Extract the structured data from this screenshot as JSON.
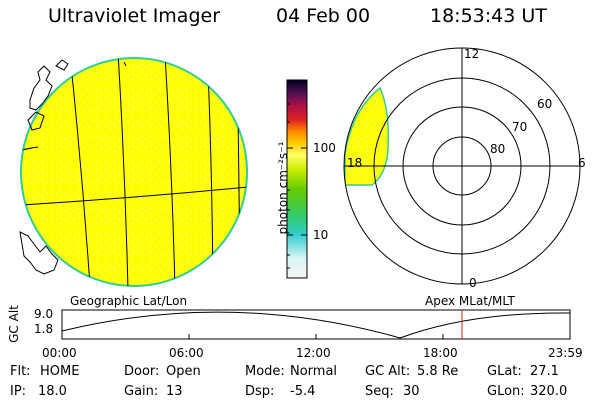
{
  "header": {
    "instrument": "Ultraviolet Imager",
    "date": "04 Feb 00",
    "time": "18:53:43 UT"
  },
  "colorbar": {
    "label": "photon cm⁻²s⁻¹",
    "ticks": [
      "100",
      "10"
    ]
  },
  "polar_plot": {
    "labels": [
      "12",
      "60",
      "70",
      "80",
      "18",
      "6",
      "0"
    ]
  },
  "map_title": "Geographic Lat/Lon",
  "polar_title": "Apex MLat/MLT",
  "altitude_plot": {
    "ylabel": "GC Alt",
    "yticks": [
      "9.0",
      "1.8"
    ],
    "xticks": [
      "00:00",
      "06:00",
      "12:00",
      "18:00",
      "23:59"
    ],
    "current_time_marker": "18:53"
  },
  "status": {
    "flt_label": "Flt:",
    "flt_value": "HOME",
    "ip_label": "IP:",
    "ip_value": "18.0",
    "door_label": "Door:",
    "door_value": "Open",
    "gain_label": "Gain:",
    "gain_value": "13",
    "mode_label": "Mode:",
    "mode_value": "Normal",
    "dsp_label": "Dsp:",
    "dsp_value": "-5.4",
    "gcalt_label": "GC Alt:",
    "gcalt_value": "5.8 Re",
    "seq_label": "Seq:",
    "seq_value": "30",
    "glat_label": "GLat:",
    "glat_value": "27.1",
    "glon_label": "GLon:",
    "glon_value": "320.0"
  },
  "colors": {
    "image_fill": "#ffff00",
    "image_edge": "#33cc99",
    "marker": "#cc2222"
  }
}
